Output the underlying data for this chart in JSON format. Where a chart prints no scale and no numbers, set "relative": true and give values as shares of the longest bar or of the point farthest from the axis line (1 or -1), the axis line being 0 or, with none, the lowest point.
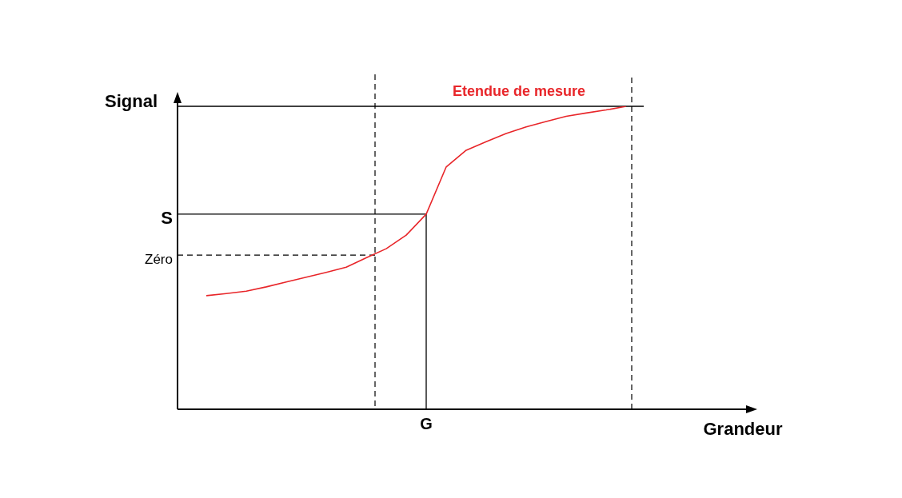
{
  "chart_data": {
    "type": "line",
    "relative": true,
    "xlabel": "Grandeur",
    "ylabel": "Signal",
    "legend": false,
    "marker": "none",
    "line_style": "solid",
    "annotations": [
      "Etendue de mesure",
      "G"
    ],
    "categories": [
      null,
      null,
      null,
      null,
      null,
      null,
      null,
      null,
      null,
      null,
      null,
      null,
      null,
      null,
      null,
      null,
      null,
      null,
      null,
      null,
      null,
      null
    ],
    "ref_lines": [
      {
        "axis": "y",
        "value": 1,
        "label": null,
        "color": "#000000",
        "line_style": "solid"
      },
      {
        "axis": "y",
        "value": 0.644,
        "label": "S",
        "color": "#000000",
        "line_style": "solid"
      },
      {
        "axis": "y",
        "value": 0.509,
        "label": "Zéro",
        "color": "#000000",
        "line_style": "dashed"
      }
    ],
    "series": [
      {
        "color": "#e8262a",
        "values": [
          0.375,
          0.382,
          0.39,
          0.404,
          0.42,
          0.436,
          0.452,
          0.469,
          0.5,
          0.53,
          0.575,
          0.644,
          0.8,
          0.855,
          0.883,
          0.91,
          0.932,
          0.95,
          0.967,
          0.978,
          0.988,
          1
        ]
      }
    ]
  }
}
